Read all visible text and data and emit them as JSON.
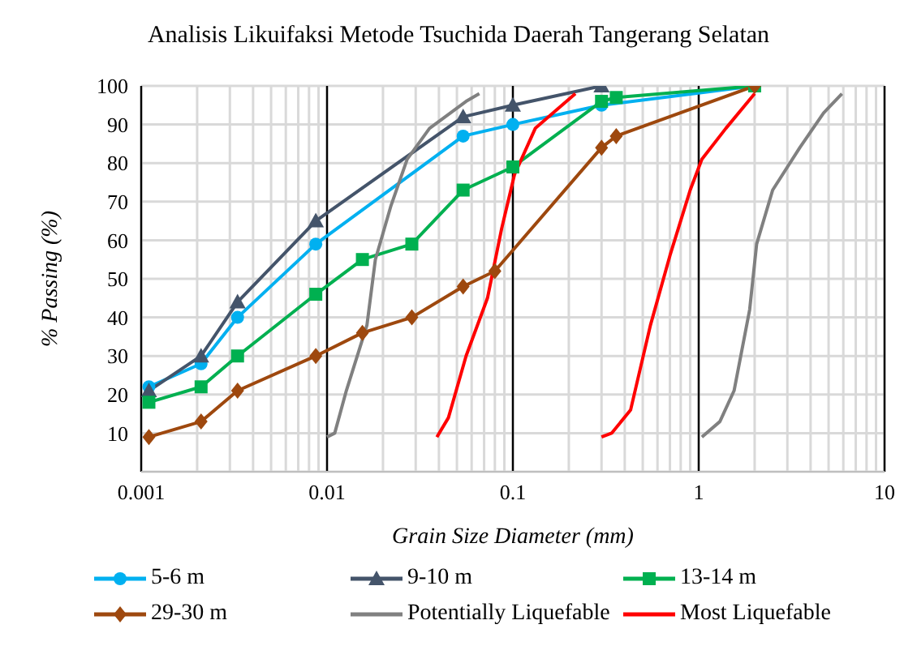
{
  "chart_data": {
    "type": "line",
    "title": "Analisis Likuifaksi Metode Tsuchida Daerah Tangerang Selatan",
    "xlabel": "Grain Size Diameter (mm)",
    "ylabel": "% Passing (%)",
    "log": "x",
    "xlim": [
      0.001,
      10
    ],
    "ylim": [
      0,
      100
    ],
    "xticks": [
      0.001,
      {
        "value": 0.002,
        "label": null
      },
      {
        "value": 0.003,
        "label": null
      },
      {
        "value": 0.004,
        "label": null
      },
      {
        "value": 0.005,
        "label": null
      },
      {
        "value": 0.006,
        "label": null
      },
      {
        "value": 0.007,
        "label": null
      },
      {
        "value": 0.008,
        "label": null
      },
      {
        "value": 0.009,
        "label": null
      },
      0.01,
      {
        "value": 0.02,
        "label": null
      },
      {
        "value": 0.03,
        "label": null
      },
      {
        "value": 0.04,
        "label": null
      },
      {
        "value": 0.05,
        "label": null
      },
      {
        "value": 0.06,
        "label": null
      },
      {
        "value": 0.07,
        "label": null
      },
      {
        "value": 0.08,
        "label": null
      },
      {
        "value": 0.09,
        "label": null
      },
      0.1,
      {
        "value": 0.2,
        "label": null
      },
      {
        "value": 0.3,
        "label": null
      },
      {
        "value": 0.4,
        "label": null
      },
      {
        "value": 0.5,
        "label": null
      },
      {
        "value": 0.6,
        "label": null
      },
      {
        "value": 0.7,
        "label": null
      },
      {
        "value": 0.8,
        "label": null
      },
      {
        "value": 0.9,
        "label": null
      },
      1,
      {
        "value": 2,
        "label": null
      },
      {
        "value": 3,
        "label": null
      },
      {
        "value": 4,
        "label": null
      },
      {
        "value": 5,
        "label": null
      },
      {
        "value": 6,
        "label": null
      },
      {
        "value": 7,
        "label": null
      },
      {
        "value": 8,
        "label": null
      },
      {
        "value": 9,
        "label": null
      },
      10
    ],
    "yticks": [
      {
        "value": 0,
        "label": null
      },
      10,
      20,
      30,
      40,
      50,
      60,
      70,
      80,
      90,
      100
    ],
    "grid": true,
    "legend": "bottom",
    "series": [
      {
        "name": "5-6 m",
        "color": "#00b0f0",
        "marker": "circle",
        "x": [
          0.0011,
          0.0021,
          0.0033,
          0.0087,
          0.054,
          0.1,
          0.3,
          2
        ],
        "values": [
          22,
          28,
          40,
          59,
          87,
          90,
          95,
          100
        ]
      },
      {
        "name": "9-10 m",
        "color": "#44546a",
        "marker": "triangle",
        "x": [
          0.0011,
          0.0021,
          0.0033,
          0.0087,
          0.054,
          0.1,
          0.3
        ],
        "values": [
          21,
          30,
          44,
          65,
          92,
          95,
          100
        ]
      },
      {
        "name": "13-14 m",
        "color": "#00b050",
        "marker": "square",
        "x": [
          0.0011,
          0.0021,
          0.0033,
          0.0087,
          0.0155,
          0.0286,
          0.054,
          0.1,
          0.3,
          0.36,
          2
        ],
        "values": [
          18,
          22,
          30,
          46,
          55,
          59,
          73,
          79,
          96,
          97,
          100
        ]
      },
      {
        "name": "29-30 m",
        "color": "#9e480e",
        "marker": "diamond",
        "x": [
          0.0011,
          0.0021,
          0.0033,
          0.0087,
          0.0155,
          0.0286,
          0.054,
          0.08,
          0.3,
          0.36,
          2
        ],
        "values": [
          9,
          13,
          21,
          30,
          36,
          40,
          48,
          52,
          84,
          87,
          100
        ]
      },
      {
        "name": "Potentially Liquefable",
        "color": "#808080",
        "marker": "none",
        "x": [
          0.01,
          0.011,
          0.0127,
          0.0164,
          0.0182,
          0.0221,
          0.027,
          0.0356,
          0.056,
          0.066,
          0.5,
          1.04,
          1.3,
          1.55,
          1.88,
          2.05,
          2.5,
          3.5,
          4.7,
          5.9
        ],
        "values": [
          9,
          10,
          21,
          38,
          55,
          69,
          81,
          89,
          96,
          98,
          null,
          9,
          13,
          21,
          42,
          59,
          73,
          84,
          93,
          98
        ]
      },
      {
        "name": "Most Liquefable",
        "color": "#ff0000",
        "marker": "none",
        "x": [
          0.039,
          0.045,
          0.056,
          0.073,
          0.087,
          0.102,
          0.132,
          0.217,
          0.25,
          0.3,
          0.34,
          0.43,
          0.55,
          0.7,
          0.9,
          1.04,
          1.4,
          2
        ],
        "values": [
          9,
          14,
          30,
          45,
          63,
          77,
          89,
          98,
          null,
          9,
          10,
          16,
          38,
          56,
          73,
          81,
          89,
          98
        ]
      }
    ]
  }
}
